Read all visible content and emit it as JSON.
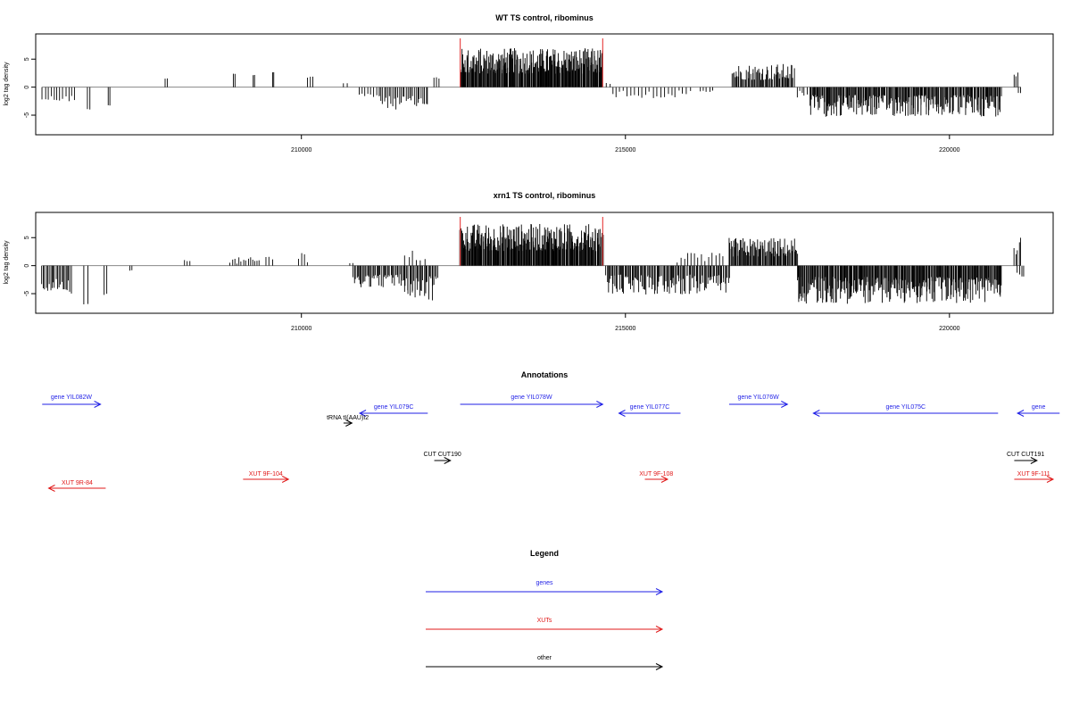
{
  "chart_data": [
    {
      "type": "bar",
      "title": "WT TS control, ribominus",
      "ylabel": "log2 tag density",
      "xlabel": "",
      "xlim": [
        205900,
        221600
      ],
      "ylim": [
        -8.5,
        9.5
      ],
      "xticks": [
        210000,
        215000,
        220000
      ],
      "xtick_labels": [
        "210000",
        "215000",
        "220000"
      ],
      "yticks": [
        -5,
        0,
        5
      ],
      "ytick_labels": [
        "-5",
        "0",
        "5"
      ],
      "grid": false,
      "bar_color": "#000000",
      "highlight_color": "#e84a4a",
      "marker_positions": [
        212450,
        214650
      ],
      "series": [
        {
          "segments": [
            {
              "x0": 206000,
              "x1": 206500,
              "sign": -1,
              "base": 1.5,
              "amp": 1.2,
              "n": 12
            },
            {
              "x0": 206700,
              "x1": 206730,
              "sign": -1,
              "base": 3.9,
              "amp": 0.1,
              "n": 2
            },
            {
              "x0": 207020,
              "x1": 207050,
              "sign": -1,
              "base": 3.2,
              "amp": 0.1,
              "n": 2
            },
            {
              "x0": 207900,
              "x1": 207930,
              "sign": 1,
              "base": 1.5,
              "amp": 0.2,
              "n": 2
            },
            {
              "x0": 208950,
              "x1": 208980,
              "sign": 1,
              "base": 2.3,
              "amp": 0.1,
              "n": 2
            },
            {
              "x0": 209250,
              "x1": 209280,
              "sign": 1,
              "base": 2.1,
              "amp": 0.1,
              "n": 2
            },
            {
              "x0": 209550,
              "x1": 209580,
              "sign": 1,
              "base": 2.6,
              "amp": 0.1,
              "n": 2
            },
            {
              "x0": 210100,
              "x1": 210180,
              "sign": 1,
              "base": 1.0,
              "amp": 1.4,
              "n": 3
            },
            {
              "x0": 210650,
              "x1": 210700,
              "sign": 1,
              "base": 0.6,
              "amp": 0.3,
              "n": 2
            },
            {
              "x0": 210900,
              "x1": 211200,
              "sign": -1,
              "base": 1.0,
              "amp": 1.0,
              "n": 8
            },
            {
              "x0": 211200,
              "x1": 211950,
              "sign": -1,
              "base": 1.6,
              "amp": 2.4,
              "n": 30
            },
            {
              "x0": 212050,
              "x1": 212120,
              "sign": 1,
              "base": 1.4,
              "amp": 0.6,
              "n": 3
            },
            {
              "x0": 212450,
              "x1": 214650,
              "sign": 1,
              "base": 2.4,
              "amp": 4.6,
              "n": 260
            },
            {
              "x0": 214700,
              "x1": 214760,
              "sign": 1,
              "base": 0.4,
              "amp": 0.4,
              "n": 2
            },
            {
              "x0": 214800,
              "x1": 216000,
              "sign": -1,
              "base": 0.6,
              "amp": 1.4,
              "n": 22
            },
            {
              "x0": 216150,
              "x1": 216350,
              "sign": -1,
              "base": 0.6,
              "amp": 0.8,
              "n": 5
            },
            {
              "x0": 216650,
              "x1": 217600,
              "sign": 1,
              "base": 1.3,
              "amp": 2.9,
              "n": 65
            },
            {
              "x0": 217650,
              "x1": 217800,
              "sign": -1,
              "base": 0.4,
              "amp": 1.8,
              "n": 5
            },
            {
              "x0": 217850,
              "x1": 220800,
              "sign": -1,
              "base": 1.4,
              "amp": 3.9,
              "n": 250
            },
            {
              "x0": 221000,
              "x1": 221060,
              "sign": 1,
              "base": 1.6,
              "amp": 1.0,
              "n": 3
            },
            {
              "x0": 221060,
              "x1": 221100,
              "sign": -1,
              "base": 0.8,
              "amp": 0.3,
              "n": 2
            }
          ]
        }
      ]
    },
    {
      "type": "bar",
      "title": "xrn1 TS control, ribominus",
      "ylabel": "log2 tag density",
      "xlabel": "",
      "xlim": [
        205900,
        221600
      ],
      "ylim": [
        -8.5,
        9.5
      ],
      "xticks": [
        210000,
        215000,
        220000
      ],
      "xtick_labels": [
        "210000",
        "215000",
        "220000"
      ],
      "yticks": [
        -5,
        0,
        5
      ],
      "ytick_labels": [
        "-5",
        "0",
        "5"
      ],
      "grid": false,
      "bar_color": "#000000",
      "highlight_color": "#e84a4a",
      "marker_positions": [
        212450,
        214650
      ],
      "series": [
        {
          "segments": [
            {
              "x0": 206000,
              "x1": 206450,
              "sign": -1,
              "base": 2.2,
              "amp": 2.8,
              "n": 22
            },
            {
              "x0": 206650,
              "x1": 206700,
              "sign": -1,
              "base": 6.5,
              "amp": 0.6,
              "n": 2
            },
            {
              "x0": 206950,
              "x1": 207000,
              "sign": -1,
              "base": 5.0,
              "amp": 0.8,
              "n": 2
            },
            {
              "x0": 207350,
              "x1": 207380,
              "sign": -1,
              "base": 0.8,
              "amp": 0.1,
              "n": 2
            },
            {
              "x0": 208200,
              "x1": 208280,
              "sign": 1,
              "base": 0.8,
              "amp": 0.5,
              "n": 3
            },
            {
              "x0": 208900,
              "x1": 209350,
              "sign": 1,
              "base": 0.3,
              "amp": 1.2,
              "n": 14
            },
            {
              "x0": 209450,
              "x1": 209550,
              "sign": 1,
              "base": 0.8,
              "amp": 1.6,
              "n": 3
            },
            {
              "x0": 209950,
              "x1": 210100,
              "sign": 1,
              "base": 0.6,
              "amp": 2.2,
              "n": 4
            },
            {
              "x0": 210750,
              "x1": 210790,
              "sign": 1,
              "base": 0.4,
              "amp": 0.3,
              "n": 2
            },
            {
              "x0": 210800,
              "x1": 211600,
              "sign": -1,
              "base": 1.5,
              "amp": 2.4,
              "n": 45
            },
            {
              "x0": 211600,
              "x1": 211900,
              "sign": 1,
              "base": 0.8,
              "amp": 2.0,
              "n": 6
            },
            {
              "x0": 211600,
              "x1": 212100,
              "sign": -1,
              "base": 1.8,
              "amp": 4.6,
              "n": 30
            },
            {
              "x0": 212450,
              "x1": 214650,
              "sign": 1,
              "base": 2.6,
              "amp": 4.9,
              "n": 270
            },
            {
              "x0": 214700,
              "x1": 216600,
              "sign": -1,
              "base": 1.6,
              "amp": 3.6,
              "n": 120
            },
            {
              "x0": 215800,
              "x1": 216500,
              "sign": 1,
              "base": 0.5,
              "amp": 1.8,
              "n": 14
            },
            {
              "x0": 216600,
              "x1": 217650,
              "sign": 1,
              "base": 1.6,
              "amp": 3.4,
              "n": 90
            },
            {
              "x0": 217650,
              "x1": 220800,
              "sign": -1,
              "base": 2.0,
              "amp": 4.8,
              "n": 300
            },
            {
              "x0": 221000,
              "x1": 221100,
              "sign": 1,
              "base": 2.0,
              "amp": 3.2,
              "n": 5
            },
            {
              "x0": 221050,
              "x1": 221150,
              "sign": -1,
              "base": 1.2,
              "amp": 1.4,
              "n": 4
            }
          ]
        }
      ]
    }
  ],
  "annotations": {
    "title": "Annotations",
    "features": [
      {
        "label": "gene YIL082W",
        "kind": "gene",
        "color": "#1f1fe6",
        "start": 206000,
        "end": 206900,
        "dir": 1,
        "row": 0
      },
      {
        "label": "gene YIL079C",
        "kind": "gene",
        "color": "#1f1fe6",
        "start": 210900,
        "end": 211950,
        "dir": -1,
        "row": 1
      },
      {
        "label": "gene YIL078W",
        "kind": "gene",
        "color": "#1f1fe6",
        "start": 212450,
        "end": 214650,
        "dir": 1,
        "row": 0
      },
      {
        "label": "gene YIL077C",
        "kind": "gene",
        "color": "#1f1fe6",
        "start": 214900,
        "end": 215850,
        "dir": -1,
        "row": 1
      },
      {
        "label": "gene YIL076W",
        "kind": "gene",
        "color": "#1f1fe6",
        "start": 216600,
        "end": 217500,
        "dir": 1,
        "row": 0
      },
      {
        "label": "gene YIL075C",
        "kind": "gene",
        "color": "#1f1fe6",
        "start": 217900,
        "end": 220750,
        "dir": -1,
        "row": 1
      },
      {
        "label": "gene",
        "kind": "gene",
        "color": "#1f1fe6",
        "start": 221050,
        "end": 221700,
        "dir": -1,
        "row": 1
      },
      {
        "label": "tRNA tI(AAU)I2",
        "kind": "other",
        "color": "#000000",
        "start": 210650,
        "end": 210780,
        "dir": 1,
        "row": 2
      },
      {
        "label": "CUT CUT190",
        "kind": "other",
        "color": "#000000",
        "start": 212050,
        "end": 212300,
        "dir": 1,
        "row": 3
      },
      {
        "label": "CUT CUT191",
        "kind": "other",
        "color": "#000000",
        "start": 221000,
        "end": 221350,
        "dir": 1,
        "row": 3
      },
      {
        "label": "XUT 9R-84",
        "kind": "xut",
        "color": "#e01818",
        "start": 206100,
        "end": 206980,
        "dir": -1,
        "row": 5
      },
      {
        "label": "XUT 9F-104",
        "kind": "xut",
        "color": "#e01818",
        "start": 209100,
        "end": 209800,
        "dir": 1,
        "row": 4
      },
      {
        "label": "XUT 9F-108",
        "kind": "xut",
        "color": "#e01818",
        "start": 215300,
        "end": 215650,
        "dir": 1,
        "row": 4
      },
      {
        "label": "XUT 9F-111",
        "kind": "xut",
        "color": "#e01818",
        "start": 221000,
        "end": 221600,
        "dir": 1,
        "row": 4
      }
    ]
  },
  "legend": {
    "title": "Legend",
    "items": [
      {
        "label": "genes",
        "color": "#1f1fe6"
      },
      {
        "label": "XUTs",
        "color": "#e01818"
      },
      {
        "label": "other",
        "color": "#000000"
      }
    ]
  }
}
